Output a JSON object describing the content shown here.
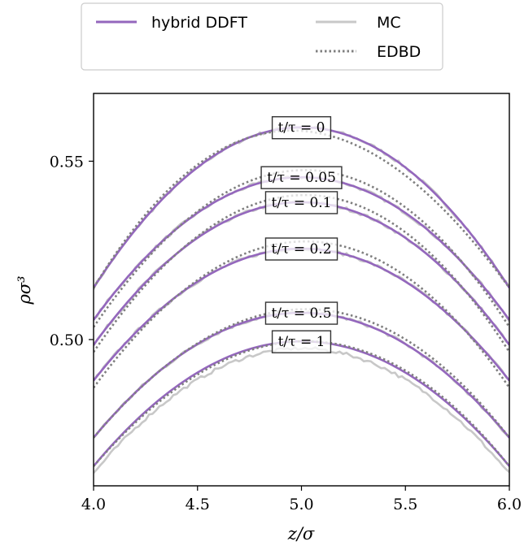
{
  "chart_data": {
    "type": "line",
    "xlabel": "z/σ",
    "ylabel": "ρσ³",
    "xlim": [
      4.0,
      6.0
    ],
    "ylim": [
      0.459,
      0.569
    ],
    "xticks": [
      "4.0",
      "4.5",
      "5.0",
      "5.5",
      "6.0"
    ],
    "yticks": [
      "0.50",
      "0.55"
    ],
    "xtick_values": [
      4.0,
      4.5,
      5.0,
      5.5,
      6.0
    ],
    "ytick_values": [
      0.5,
      0.55
    ],
    "grid": false,
    "legend_position": "top-center",
    "legend": [
      {
        "label": "hybrid DDFT",
        "style": "solid",
        "color": "#9467bd"
      },
      {
        "label": "MC",
        "style": "solid",
        "color": "#c8c8c8"
      },
      {
        "label": "EDBD",
        "style": "dotted",
        "color": "#7f7f7f"
      }
    ],
    "times": [
      {
        "label": "t/τ = 0",
        "x": 5.0,
        "peak": 0.5595,
        "edge": 0.5145,
        "mc_edge": 0.5145,
        "edbd_peak": 0.5585,
        "edbd_edge": 0.5145
      },
      {
        "label": "t/τ = 0.05",
        "x": 5.0,
        "peak": 0.5455,
        "edge": 0.5055,
        "mc_edge": 0.5055,
        "edbd_peak": 0.5475,
        "edbd_edge": 0.5035
      },
      {
        "label": "t/τ = 0.1",
        "x": 5.0,
        "peak": 0.5385,
        "edge": 0.4985,
        "mc_edge": 0.4985,
        "edbd_peak": 0.5405,
        "edbd_edge": 0.4965
      },
      {
        "label": "t/τ = 0.2",
        "x": 5.0,
        "peak": 0.5255,
        "edge": 0.4885,
        "mc_edge": 0.4885,
        "edbd_peak": 0.5275,
        "edbd_edge": 0.4865
      },
      {
        "label": "t/τ = 0.5",
        "x": 5.0,
        "peak": 0.5075,
        "edge": 0.4725,
        "mc_edge": 0.4725,
        "edbd_peak": 0.5085,
        "edbd_edge": 0.4725
      },
      {
        "label": "t/τ = 1",
        "x": 5.0,
        "peak": 0.4995,
        "edge": 0.4645,
        "mc_edge": 0.4625,
        "edbd_peak": 0.4995,
        "edbd_edge": 0.4645
      }
    ]
  }
}
